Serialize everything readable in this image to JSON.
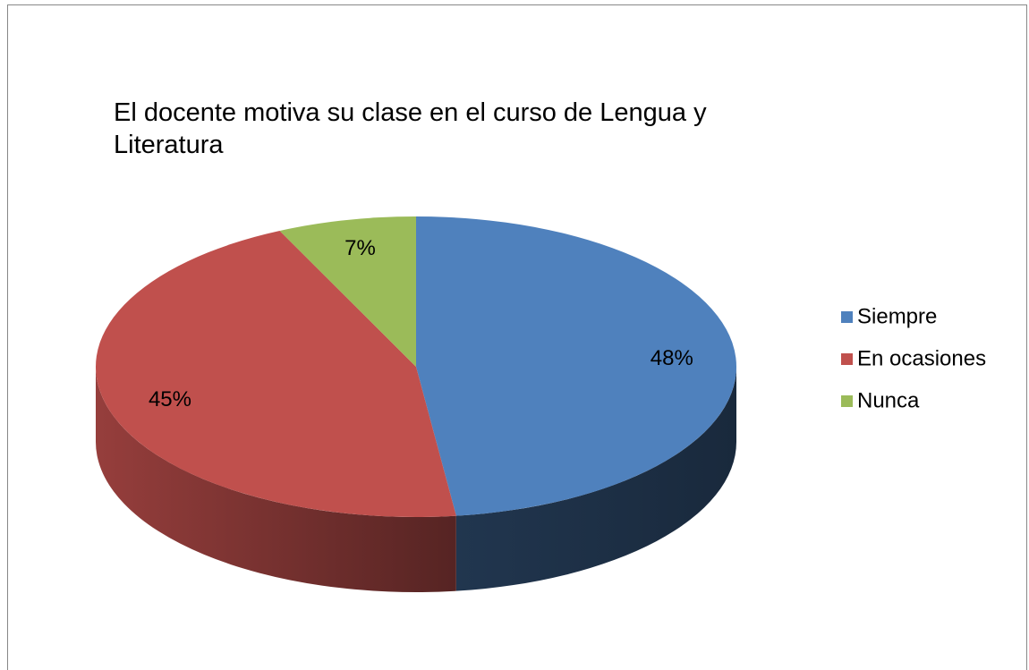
{
  "chart_data": {
    "type": "pie3d",
    "title": "El docente motiva su clase en el curso de Lengua y Literatura",
    "categories": [
      "Siempre",
      "En ocasiones",
      "Nunca"
    ],
    "values": [
      48,
      45,
      7
    ],
    "value_labels": [
      "48%",
      "45%",
      "7%"
    ],
    "colors": [
      "#4f81bd",
      "#c0504d",
      "#9bbb59"
    ],
    "legend": "right"
  }
}
